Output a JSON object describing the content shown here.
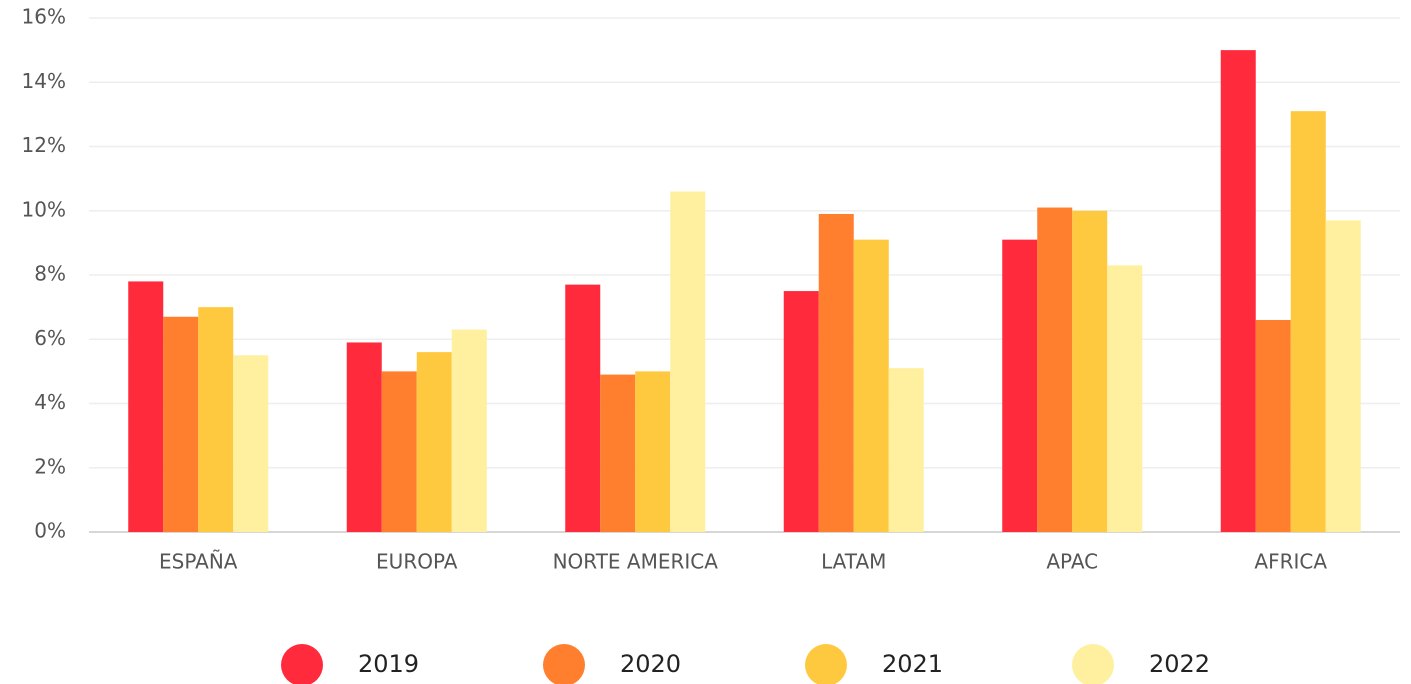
{
  "chart_data": {
    "type": "bar",
    "categories": [
      "ESPAÑA",
      "EUROPA",
      "NORTE AMERICA",
      "LATAM",
      "APAC",
      "AFRICA"
    ],
    "series": [
      {
        "name": "2019",
        "color": "#ff2a3b",
        "values": [
          7.8,
          5.9,
          7.7,
          7.5,
          9.1,
          15.0
        ]
      },
      {
        "name": "2020",
        "color": "#ff7f2e",
        "values": [
          6.7,
          5.0,
          4.9,
          9.9,
          10.1,
          6.6
        ]
      },
      {
        "name": "2021",
        "color": "#ffc93f",
        "values": [
          7.0,
          5.6,
          5.0,
          9.1,
          10.0,
          13.1
        ]
      },
      {
        "name": "2022",
        "color": "#fff0a0",
        "values": [
          5.5,
          6.3,
          10.6,
          5.1,
          8.3,
          9.7
        ]
      }
    ],
    "ylim": [
      0,
      16
    ],
    "yticks": [
      {
        "value": 0,
        "label": "0%"
      },
      {
        "value": 2,
        "label": "2%"
      },
      {
        "value": 4,
        "label": "4%"
      },
      {
        "value": 6,
        "label": "6%"
      },
      {
        "value": 8,
        "label": "8%"
      },
      {
        "value": 10,
        "label": "10%"
      },
      {
        "value": 12,
        "label": "12%"
      },
      {
        "value": 14,
        "label": "14%"
      },
      {
        "value": 16,
        "label": "16%"
      }
    ],
    "grid": true,
    "legend": "bottom"
  }
}
